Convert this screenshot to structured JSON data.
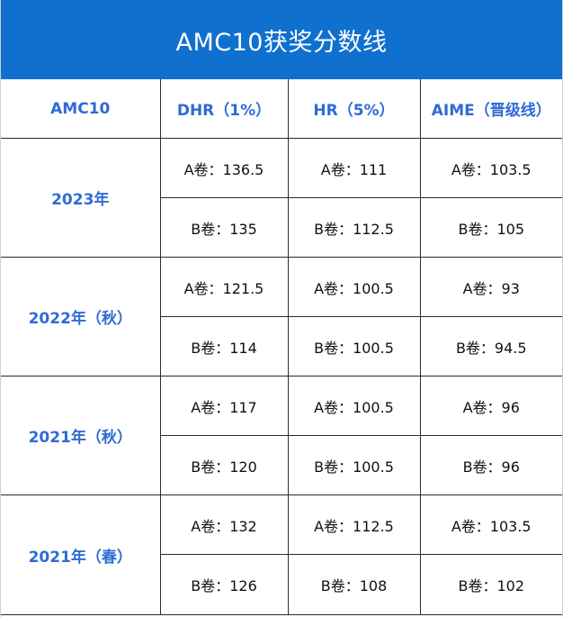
{
  "title": "AMC10获奖分数线",
  "headers": [
    "AMC10",
    "DHR（1%）",
    "HR（5%）",
    "AIME（晋级线）"
  ],
  "groups": [
    {
      "year": "2023年",
      "rows": [
        [
          "A卷：136.5",
          "A卷：111",
          "A卷：103.5"
        ],
        [
          "B卷：135",
          "B卷：112.5",
          "B卷：105"
        ]
      ]
    },
    {
      "year": "2022年（秋）",
      "rows": [
        [
          "A卷：121.5",
          "A卷：100.5",
          "A卷：93"
        ],
        [
          "B卷：114",
          "B卷：100.5",
          "B卷：94.5"
        ]
      ]
    },
    {
      "year": "2021年（秋）",
      "rows": [
        [
          "A卷：117",
          "A卷：100.5",
          "A卷：96"
        ],
        [
          "B卷：120",
          "B卷：100.5",
          "B卷：96"
        ]
      ]
    },
    {
      "year": "2021年（春）",
      "rows": [
        [
          "A卷：132",
          "A卷：112.5",
          "A卷：103.5"
        ],
        [
          "B卷：126",
          "B卷：108",
          "B卷：102"
        ]
      ]
    }
  ]
}
